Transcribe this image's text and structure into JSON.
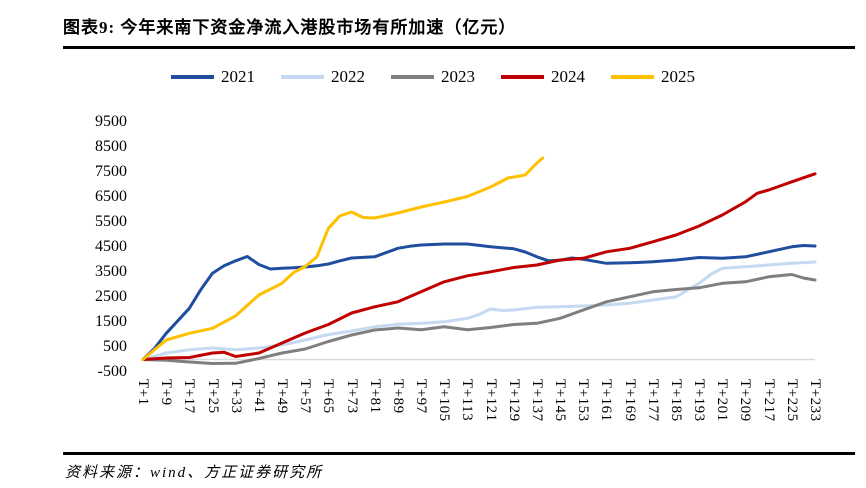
{
  "header": {
    "title": "图表9: 今年来南下资金净流入港股市场有所加速（亿元）"
  },
  "footer": {
    "source": "资料来源：wind、方正证券研究所"
  },
  "chart_data": {
    "type": "line",
    "title": "今年来南下资金净流入港股市场有所加速（亿元）",
    "xlabel": "",
    "ylabel": "",
    "unit": "亿元",
    "ylim": [
      -500,
      9500
    ],
    "ytick_step": 1000,
    "yticks": [
      9500,
      8500,
      7500,
      6500,
      5500,
      4500,
      3500,
      2500,
      1500,
      500,
      -500
    ],
    "xtick_values": [
      1,
      9,
      17,
      25,
      33,
      41,
      49,
      57,
      65,
      73,
      81,
      89,
      97,
      105,
      113,
      121,
      129,
      137,
      145,
      153,
      161,
      169,
      177,
      185,
      193,
      201,
      209,
      217,
      225,
      233
    ],
    "xtick_labels": [
      "T+1",
      "T+9",
      "T+17",
      "T+25",
      "T+33",
      "T+41",
      "T+49",
      "T+57",
      "T+65",
      "T+73",
      "T+81",
      "T+89",
      "T+97",
      "T+105",
      "T+113",
      "T+121",
      "T+129",
      "T+137",
      "T+145",
      "T+153",
      "T+161",
      "T+169",
      "T+177",
      "T+185",
      "T+193",
      "T+201",
      "T+209",
      "T+217",
      "T+225",
      "T+233"
    ],
    "grid": "zero-line-only",
    "zero_line_color": "#d9d9d9",
    "legend_position": "top-center",
    "series": [
      {
        "name": "2021",
        "color": "#1f4e9f",
        "x": [
          1,
          5,
          9,
          13,
          17,
          21,
          25,
          29,
          33,
          37,
          41,
          45,
          49,
          53,
          57,
          61,
          65,
          69,
          73,
          81,
          89,
          93,
          97,
          105,
          113,
          121,
          129,
          133,
          137,
          141,
          145,
          149,
          153,
          161,
          169,
          177,
          185,
          193,
          201,
          209,
          217,
          225,
          229,
          233
        ],
        "values": [
          0,
          450,
          1050,
          1550,
          2050,
          2800,
          3450,
          3750,
          3950,
          4120,
          3800,
          3620,
          3650,
          3670,
          3700,
          3750,
          3820,
          3950,
          4060,
          4110,
          4450,
          4530,
          4580,
          4620,
          4620,
          4510,
          4430,
          4300,
          4110,
          3950,
          3970,
          4060,
          4010,
          3850,
          3870,
          3910,
          3980,
          4080,
          4050,
          4110,
          4310,
          4510,
          4560,
          4540
        ]
      },
      {
        "name": "2022",
        "color": "#c5d9f1",
        "x": [
          1,
          9,
          17,
          25,
          33,
          41,
          49,
          57,
          65,
          73,
          81,
          89,
          97,
          105,
          113,
          117,
          121,
          125,
          129,
          137,
          145,
          153,
          161,
          169,
          177,
          185,
          189,
          193,
          197,
          201,
          209,
          217,
          225,
          233
        ],
        "values": [
          0,
          260,
          390,
          460,
          390,
          460,
          580,
          780,
          1000,
          1140,
          1310,
          1410,
          1450,
          1510,
          1650,
          1800,
          2020,
          1960,
          1980,
          2090,
          2110,
          2140,
          2180,
          2250,
          2380,
          2510,
          2780,
          3050,
          3400,
          3650,
          3710,
          3780,
          3850,
          3900
        ]
      },
      {
        "name": "2023",
        "color": "#7f7f7f",
        "x": [
          1,
          9,
          17,
          25,
          33,
          41,
          49,
          57,
          65,
          73,
          81,
          89,
          97,
          105,
          113,
          121,
          129,
          137,
          145,
          153,
          161,
          169,
          177,
          185,
          193,
          201,
          209,
          217,
          225,
          229,
          233
        ],
        "values": [
          0,
          -30,
          -100,
          -160,
          -150,
          40,
          260,
          420,
          720,
          980,
          1180,
          1260,
          1190,
          1310,
          1190,
          1280,
          1400,
          1450,
          1650,
          1980,
          2310,
          2510,
          2710,
          2800,
          2870,
          3050,
          3110,
          3310,
          3400,
          3260,
          3180
        ]
      },
      {
        "name": "2024",
        "color": "#c00000",
        "x": [
          1,
          9,
          17,
          25,
          29,
          33,
          41,
          49,
          57,
          65,
          73,
          81,
          89,
          97,
          105,
          113,
          121,
          129,
          137,
          145,
          153,
          161,
          169,
          177,
          185,
          193,
          201,
          209,
          213,
          217,
          225,
          233
        ],
        "values": [
          0,
          60,
          80,
          260,
          290,
          120,
          260,
          660,
          1060,
          1400,
          1860,
          2110,
          2310,
          2710,
          3110,
          3350,
          3510,
          3680,
          3780,
          3980,
          4050,
          4310,
          4450,
          4710,
          4980,
          5340,
          5780,
          6310,
          6650,
          6780,
          7110,
          7430
        ]
      },
      {
        "name": "2025",
        "color": "#ffc000",
        "x": [
          1,
          9,
          17,
          25,
          33,
          41,
          49,
          53,
          57,
          61,
          65,
          69,
          73,
          77,
          81,
          85,
          89,
          97,
          105,
          113,
          121,
          127,
          133,
          137,
          139
        ],
        "values": [
          0,
          780,
          1050,
          1250,
          1750,
          2580,
          3050,
          3480,
          3720,
          4100,
          5250,
          5750,
          5900,
          5680,
          5660,
          5760,
          5860,
          6100,
          6300,
          6520,
          6900,
          7260,
          7380,
          7860,
          8060
        ]
      }
    ]
  }
}
